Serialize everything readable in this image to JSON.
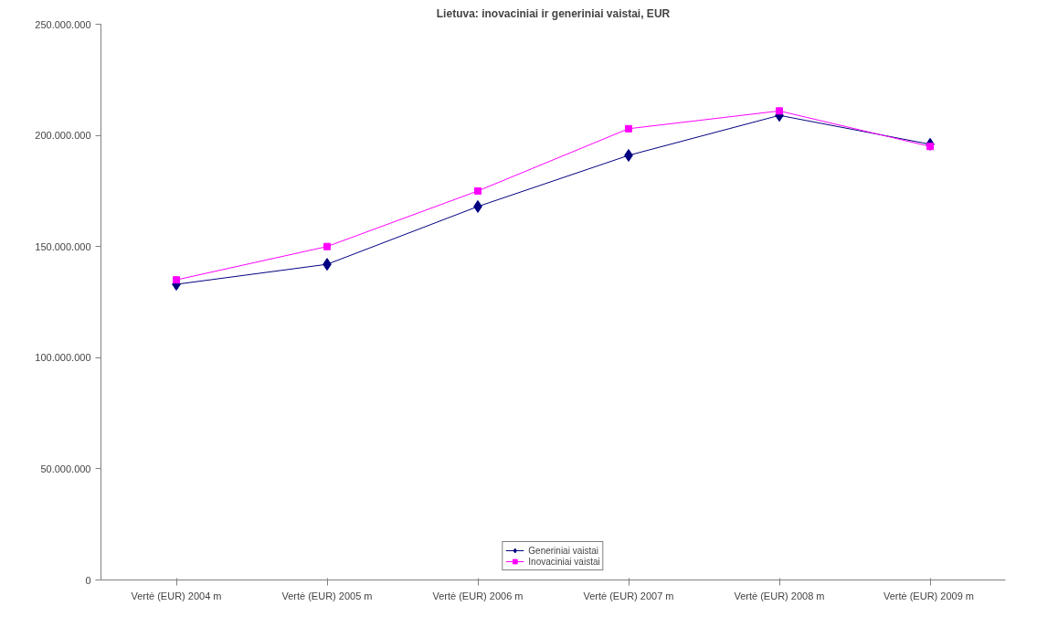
{
  "chart_data": {
    "type": "line",
    "title": "Lietuva: inovaciniai ir generiniai vaistai, EUR",
    "categories": [
      "Vertė (EUR) 2004 m",
      "Vertė (EUR) 2005 m",
      "Vertė (EUR) 2006 m",
      "Vertė (EUR) 2007 m",
      "Vertė (EUR) 2008 m",
      "Vertė (EUR)  2009 m"
    ],
    "series": [
      {
        "name": "Generiniai vaistai",
        "color": "#000080",
        "marker": "diamond",
        "values": [
          133000000,
          142000000,
          168000000,
          191000000,
          209000000,
          196000000
        ]
      },
      {
        "name": "Inovaciniai vaistai",
        "color": "#ff00ff",
        "marker": "square",
        "values": [
          135000000,
          150000000,
          175000000,
          203000000,
          211000000,
          195000000
        ]
      }
    ],
    "ylim": [
      0,
      250000000
    ],
    "yticks": [
      {
        "value": 0,
        "label": "0"
      },
      {
        "value": 50000000,
        "label": "50.000.000"
      },
      {
        "value": 100000000,
        "label": "100.000.000"
      },
      {
        "value": 150000000,
        "label": "150.000.000"
      },
      {
        "value": 200000000,
        "label": "200.000.000"
      },
      {
        "value": 250000000,
        "label": "250.000.000"
      }
    ],
    "grid": false,
    "legend": "bottom",
    "line_style": "solid"
  }
}
